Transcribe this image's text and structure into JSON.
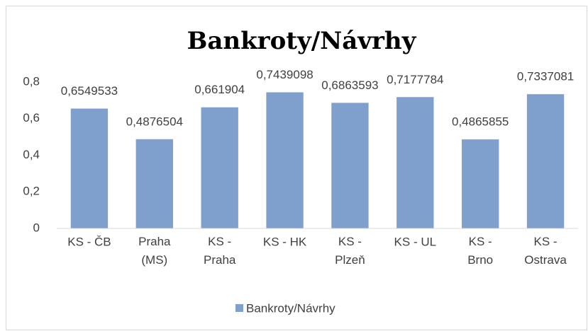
{
  "chart_data": {
    "type": "bar",
    "title": "Bankroty/Návrhy",
    "categories": [
      "KS - ČB",
      "Praha (MS)",
      "KS - Praha",
      "KS - HK",
      "KS - Plzeň",
      "KS - UL",
      "KS - Brno",
      "KS - Ostrava"
    ],
    "series": [
      {
        "name": "Bankroty/Návrhy",
        "color": "#7f9fcc",
        "values": [
          0.6549533,
          0.4876504,
          0.661904,
          0.7439098,
          0.6863593,
          0.7177784,
          0.4865855,
          0.7337081
        ],
        "value_labels": [
          "0,6549533",
          "0,4876504",
          "0,661904",
          "0,7439098",
          "0,6863593",
          "0,7177784",
          "0,4865855",
          "0,7337081"
        ]
      }
    ],
    "ylim": [
      0,
      0.8
    ],
    "yticks": [
      0,
      {
        "value": 0.2,
        "label": "0,2"
      },
      {
        "value": 0.4,
        "label": "0,4"
      },
      {
        "value": 0.6,
        "label": "0,6"
      },
      {
        "value": 0.8,
        "label": "0,8"
      }
    ],
    "grid": false,
    "legend": "bottom"
  }
}
